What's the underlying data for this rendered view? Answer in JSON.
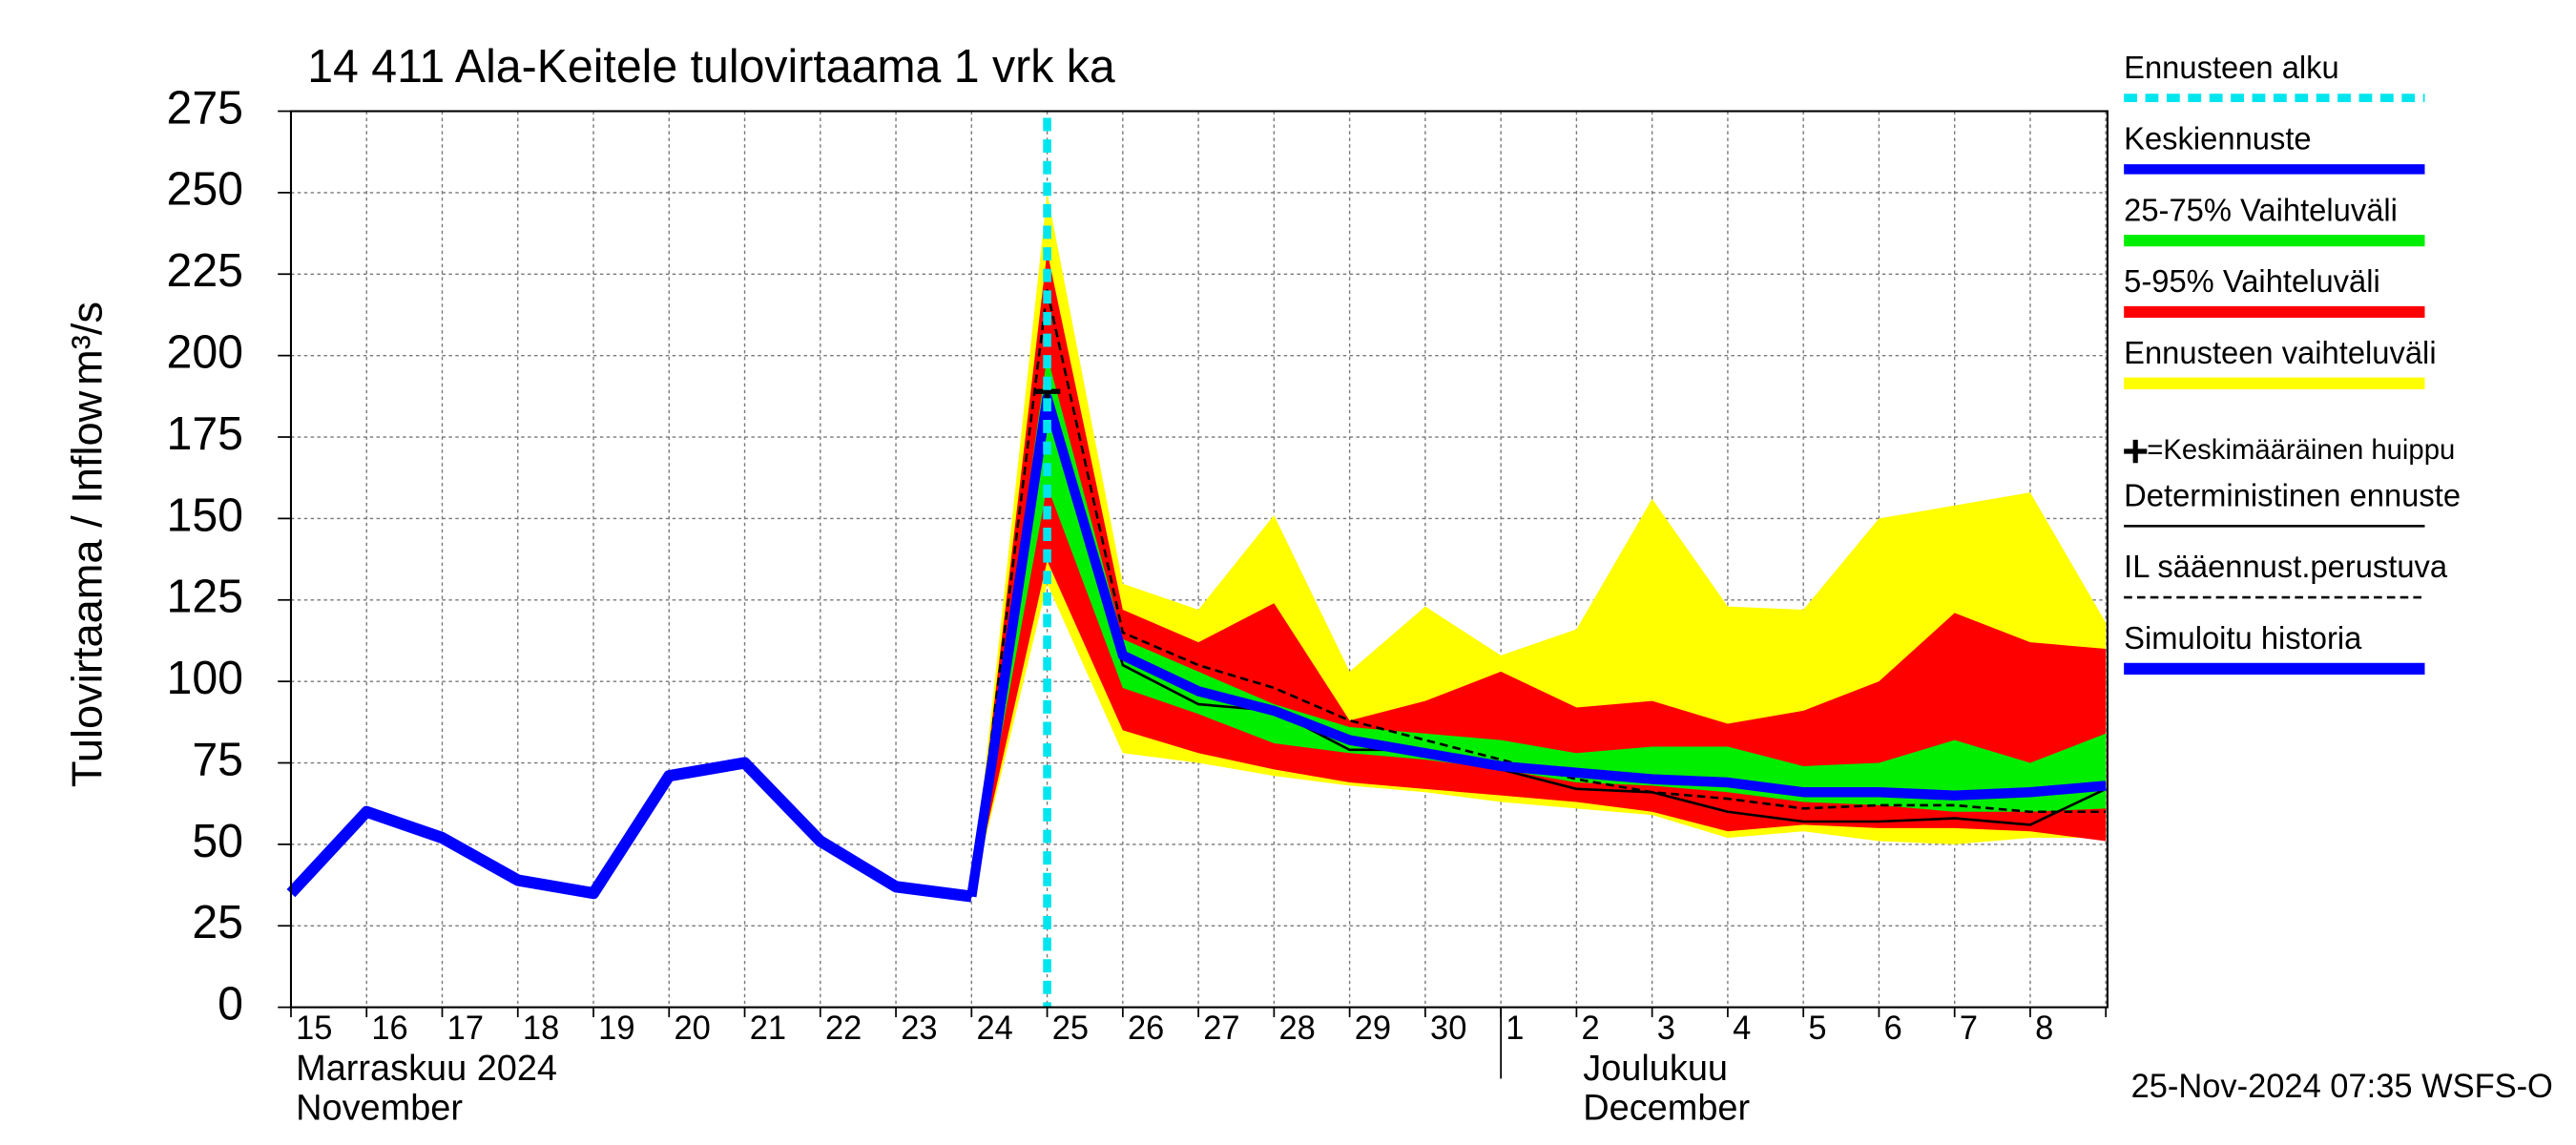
{
  "chart_data": {
    "type": "band-forecast",
    "title": "14 411 Ala-Keitele tulovirtaama 1 vrk ka",
    "y_label": "Tulovirtaama / Inflow",
    "y_unit": "m³/s",
    "month_labels": [
      {
        "fi": "Marraskuu 2024",
        "en": "November",
        "x": 0
      },
      {
        "fi": "Joulukuu",
        "en": "December",
        "x": 16
      }
    ],
    "footer": "25-Nov-2024 07:35 WSFS-O",
    "categories": [
      "15",
      "16",
      "17",
      "18",
      "19",
      "20",
      "21",
      "22",
      "23",
      "24",
      "25",
      "26",
      "27",
      "28",
      "29",
      "30",
      "1",
      "2",
      "3",
      "4",
      "5",
      "6",
      "7",
      "8",
      null
    ],
    "ylim": [
      0,
      275
    ],
    "yticks": [
      0,
      25,
      50,
      75,
      100,
      125,
      150,
      175,
      200,
      225,
      250,
      275
    ],
    "grid": true,
    "forecast_start": {
      "name": "Ennusteen alku",
      "color": "#00e5ee",
      "x": 10
    },
    "peak": {
      "name": "=Keskimääräinen huippu",
      "color": "#000000",
      "x": 10,
      "y": 189
    },
    "series": [
      {
        "name": "Keskiennuste",
        "color": "#0000ff",
        "values": [
          null,
          null,
          null,
          null,
          null,
          null,
          null,
          null,
          null,
          34,
          187,
          108,
          97,
          91,
          82,
          78,
          74,
          72,
          70,
          69,
          66,
          66,
          65,
          66,
          68
        ]
      },
      {
        "name": "25-75% Vaihteluväli",
        "color": "#00ee00",
        "upper": [
          null,
          null,
          null,
          null,
          null,
          null,
          null,
          null,
          null,
          34,
          200,
          113,
          103,
          93,
          86,
          84,
          82,
          78,
          80,
          80,
          74,
          75,
          82,
          75,
          84
        ],
        "lower": [
          null,
          null,
          null,
          null,
          null,
          null,
          null,
          null,
          null,
          34,
          160,
          98,
          90,
          81,
          78,
          76,
          73,
          69,
          68,
          66,
          63,
          62,
          60,
          60,
          61
        ]
      },
      {
        "name": "5-95% Vaihteluväli",
        "color": "#ff0000",
        "upper": [
          null,
          null,
          null,
          null,
          null,
          null,
          null,
          null,
          null,
          34,
          232,
          122,
          112,
          124,
          88,
          94,
          103,
          92,
          94,
          87,
          91,
          100,
          121,
          112,
          110
        ],
        "lower": [
          null,
          null,
          null,
          null,
          null,
          null,
          null,
          null,
          null,
          34,
          137,
          85,
          78,
          73,
          69,
          67,
          65,
          63,
          60,
          54,
          56,
          55,
          55,
          54,
          51
        ]
      },
      {
        "name": "Ennusteen vaihteluväli",
        "color": "#ffff00",
        "upper": [
          null,
          null,
          null,
          null,
          null,
          null,
          null,
          null,
          null,
          34,
          250,
          130,
          122,
          151,
          103,
          123,
          108,
          116,
          156,
          123,
          122,
          150,
          154,
          158,
          118
        ],
        "lower": [
          null,
          null,
          null,
          null,
          null,
          null,
          null,
          null,
          null,
          34,
          130,
          78,
          75,
          71,
          68,
          66,
          63,
          61,
          59,
          52,
          54,
          51,
          50,
          52,
          52
        ]
      },
      {
        "name": "Deterministinen ennuste",
        "color": "#000000",
        "values": [
          null,
          null,
          null,
          null,
          null,
          null,
          null,
          null,
          null,
          34,
          188,
          105,
          93,
          91,
          79,
          79,
          73,
          67,
          66,
          60,
          57,
          57,
          58,
          56,
          67
        ]
      },
      {
        "name": "IL sääennust.perustuva",
        "color": "#000000",
        "dashed": true,
        "values": [
          null,
          null,
          null,
          null,
          null,
          null,
          null,
          null,
          null,
          34,
          220,
          115,
          105,
          98,
          88,
          82,
          76,
          70,
          66,
          64,
          61,
          62,
          62,
          60,
          60
        ]
      },
      {
        "name": "Simuloitu historia",
        "color": "#0000ff",
        "values": [
          35,
          60,
          52,
          39,
          35,
          71,
          75,
          51,
          37,
          34,
          null,
          null,
          null,
          null,
          null,
          null,
          null,
          null,
          null,
          null,
          null,
          null,
          null,
          null,
          null
        ]
      }
    ]
  }
}
